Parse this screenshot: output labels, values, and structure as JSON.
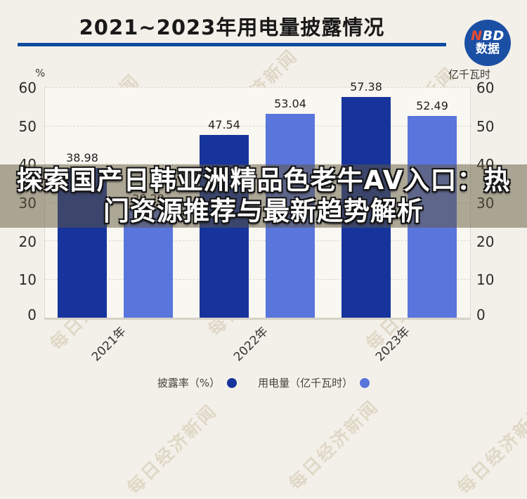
{
  "header": {
    "title": "2021~2023年用电量披露情况",
    "logo": {
      "line1": "NBD",
      "line1_red": "N",
      "line1_white": "BD",
      "line2": "数据"
    }
  },
  "watermark": {
    "text": "每日经济新闻"
  },
  "overlay": {
    "line1": "探索国产日韩亚洲精品色老牛AV入口：热",
    "line2": "门资源推荐与最新趋势解析"
  },
  "chart_data": {
    "type": "bar",
    "title": "2021~2023年用电量披露情况",
    "categories": [
      "2021年",
      "2022年",
      "2023年"
    ],
    "series": [
      {
        "name": "披露率（%）",
        "values": [
          38.98,
          47.54,
          57.38
        ],
        "color": "#16349c",
        "axis": "left"
      },
      {
        "name": "用电量（亿千瓦时）",
        "values": [
          28.28,
          53.04,
          52.49
        ],
        "color": "#5a75dc",
        "axis": "right"
      }
    ],
    "left_axis": {
      "unit": "%",
      "ticks": [
        60,
        50,
        40,
        30,
        20,
        10,
        0
      ],
      "range": [
        0,
        60
      ]
    },
    "right_axis": {
      "unit": "亿千瓦时",
      "ticks": [
        60,
        50,
        40,
        30,
        20,
        10,
        0
      ],
      "range": [
        0,
        60
      ]
    },
    "grid": true,
    "legend_position": "bottom"
  },
  "legend": [
    {
      "label": "披露率（%）",
      "color": "#16349c"
    },
    {
      "label": "用电量（亿千瓦时）",
      "color": "#5a75dc"
    }
  ]
}
